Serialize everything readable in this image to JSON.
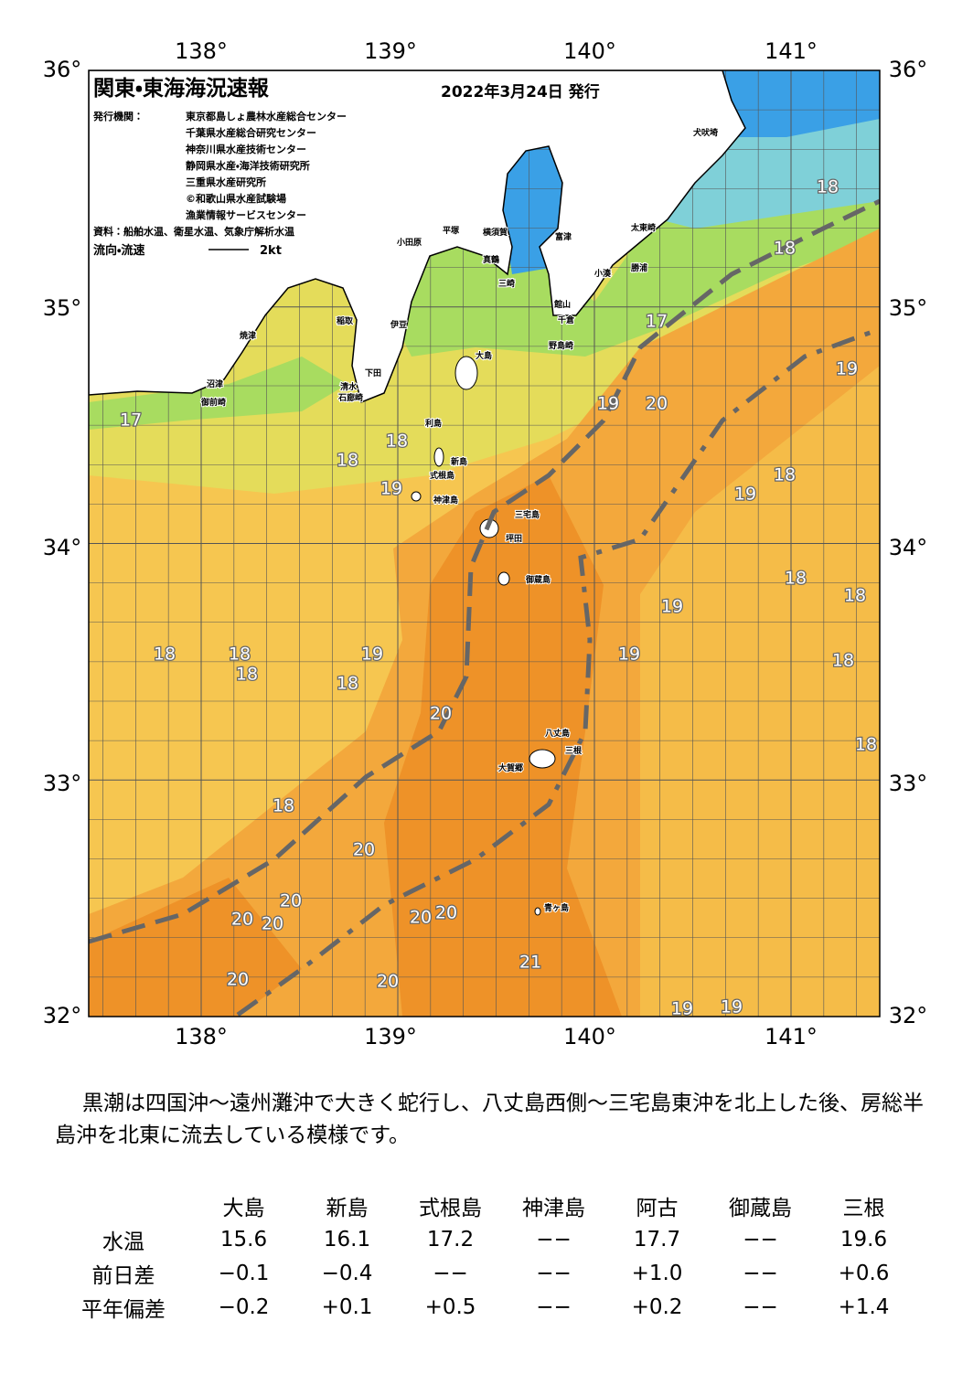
{
  "header": {
    "title": "関東・東海海況速報",
    "date": "2022年3月24日 発行",
    "issuer_label": "発行機関：",
    "issuers": [
      "東京都島しょ農林水産総合センター",
      "千葉県水産総合研究センター",
      "神奈川県水産技術センター",
      "静岡県水産・海洋技術研究所",
      "三重県水産研究所",
      "©和歌山県水産試験場",
      "漁業情報サービスセンター"
    ],
    "sources": "資料：船舶水温、衛星水温、気象庁解析水温",
    "current_label": "流向・流速",
    "current_scale": "2kt"
  },
  "map": {
    "lon_labels": [
      "138°",
      "139°",
      "140°",
      "141°"
    ],
    "lat_labels": [
      "36°",
      "35°",
      "34°",
      "33°",
      "32°"
    ],
    "temperature_labels": [
      "17",
      "18",
      "18",
      "17",
      "19",
      "19",
      "20",
      "18",
      "18",
      "19",
      "18",
      "19",
      "18",
      "18",
      "19",
      "18",
      "18",
      "18",
      "19",
      "19",
      "18",
      "18",
      "20",
      "18",
      "18",
      "20",
      "20",
      "20",
      "20",
      "20",
      "20",
      "21",
      "20",
      "20",
      "19",
      "19"
    ],
    "places": [
      "犬吠埼",
      "太東崎",
      "勝浦",
      "小湊",
      "館山",
      "千倉",
      "野島崎",
      "富津",
      "横須賀",
      "平塚",
      "小田原",
      "真鶴",
      "三崎",
      "伊豆",
      "稲取",
      "下田",
      "石廊崎",
      "大島",
      "利島",
      "新島",
      "式根島",
      "神津島",
      "三宅島",
      "坪田",
      "御蔵島",
      "八丈島",
      "三根",
      "大賀郷",
      "青ヶ島",
      "沼津",
      "焼津",
      "御前崎",
      "清水"
    ]
  },
  "note": "黒潮は四国沖～遠州灘沖で大きく蛇行し、八丈島西側～三宅島東沖を北上した後、房総半島沖を北東に流去している模様です。",
  "table": {
    "columns": [
      "大島",
      "新島",
      "式根島",
      "神津島",
      "阿古",
      "御蔵島",
      "三根"
    ],
    "rows": [
      {
        "label": "水温",
        "cells": [
          "15.6",
          "16.1",
          "17.2",
          "−−",
          "17.7",
          "−−",
          "19.6"
        ]
      },
      {
        "label": "前日差",
        "cells": [
          "−0.1",
          "−0.4",
          "−−",
          "−−",
          "+1.0",
          "−−",
          "+0.6"
        ]
      },
      {
        "label": "平年偏差",
        "cells": [
          "−0.2",
          "+0.1",
          "+0.5",
          "−−",
          "+0.2",
          "−−",
          "+1.4"
        ]
      }
    ]
  }
}
